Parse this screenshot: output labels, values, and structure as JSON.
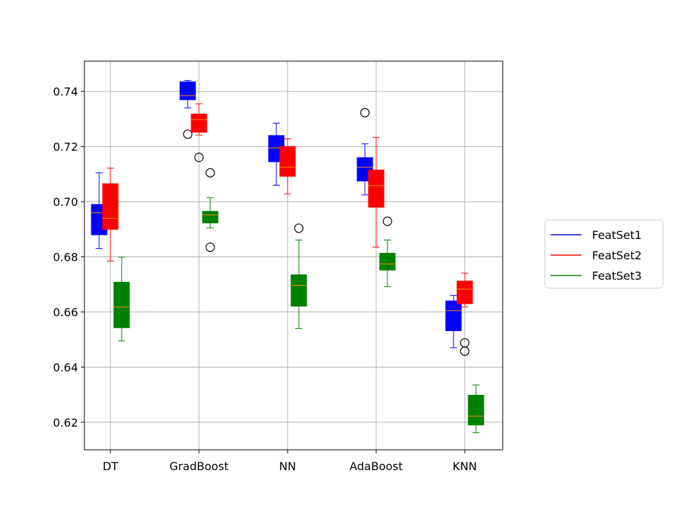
{
  "chart_data": {
    "type": "box",
    "categories": [
      "DT",
      "GradBoost",
      "NN",
      "AdaBoost",
      "KNN"
    ],
    "ylim": [
      0.61,
      0.751
    ],
    "yticks": [
      "0.62",
      "0.64",
      "0.66",
      "0.68",
      "0.70",
      "0.72",
      "0.74"
    ],
    "grid": true,
    "legend_position": "right",
    "median_color": "#ff8c00",
    "series": [
      {
        "name": "FeatSet1",
        "color": "#0000ff",
        "boxes": [
          {
            "whisker_low": 0.683,
            "q1": 0.688,
            "median": 0.696,
            "q3": 0.699,
            "whisker_high": 0.7105,
            "outliers": []
          },
          {
            "whisker_low": 0.734,
            "q1": 0.737,
            "median": 0.7385,
            "q3": 0.7435,
            "whisker_high": 0.744,
            "outliers": [
              0.7245
            ]
          },
          {
            "whisker_low": 0.706,
            "q1": 0.7145,
            "median": 0.7195,
            "q3": 0.724,
            "whisker_high": 0.7285,
            "outliers": []
          },
          {
            "whisker_low": 0.7025,
            "q1": 0.7075,
            "median": 0.7125,
            "q3": 0.716,
            "whisker_high": 0.721,
            "outliers": [
              0.7323
            ]
          },
          {
            "whisker_low": 0.647,
            "q1": 0.6532,
            "median": 0.6605,
            "q3": 0.664,
            "whisker_high": 0.666,
            "outliers": []
          }
        ]
      },
      {
        "name": "FeatSet2",
        "color": "#ff0000",
        "boxes": [
          {
            "whisker_low": 0.6785,
            "q1": 0.69,
            "median": 0.694,
            "q3": 0.7065,
            "whisker_high": 0.7122,
            "outliers": []
          },
          {
            "whisker_low": 0.7242,
            "q1": 0.7252,
            "median": 0.7298,
            "q3": 0.7318,
            "whisker_high": 0.7355,
            "outliers": [
              0.7161
            ]
          },
          {
            "whisker_low": 0.7028,
            "q1": 0.7092,
            "median": 0.7125,
            "q3": 0.72,
            "whisker_high": 0.7228,
            "outliers": []
          },
          {
            "whisker_low": 0.6835,
            "q1": 0.698,
            "median": 0.7058,
            "q3": 0.7115,
            "whisker_high": 0.7233,
            "outliers": []
          },
          {
            "whisker_low": 0.6618,
            "q1": 0.663,
            "median": 0.6683,
            "q3": 0.6712,
            "whisker_high": 0.6741,
            "outliers": [
              0.6488,
              0.6458
            ]
          }
        ]
      },
      {
        "name": "FeatSet3",
        "color": "#008000",
        "boxes": [
          {
            "whisker_low": 0.6495,
            "q1": 0.6543,
            "median": 0.6618,
            "q3": 0.6708,
            "whisker_high": 0.6799,
            "outliers": []
          },
          {
            "whisker_low": 0.6905,
            "q1": 0.6923,
            "median": 0.6952,
            "q3": 0.6965,
            "whisker_high": 0.7015,
            "outliers": [
              0.7105,
              0.6835
            ]
          },
          {
            "whisker_low": 0.654,
            "q1": 0.6621,
            "median": 0.6696,
            "q3": 0.6735,
            "whisker_high": 0.6861,
            "outliers": [
              0.6904
            ]
          },
          {
            "whisker_low": 0.6692,
            "q1": 0.6752,
            "median": 0.6774,
            "q3": 0.6813,
            "whisker_high": 0.6861,
            "outliers": [
              0.6929
            ]
          },
          {
            "whisker_low": 0.6162,
            "q1": 0.619,
            "median": 0.6222,
            "q3": 0.6298,
            "whisker_high": 0.6335,
            "outliers": []
          }
        ]
      }
    ]
  }
}
